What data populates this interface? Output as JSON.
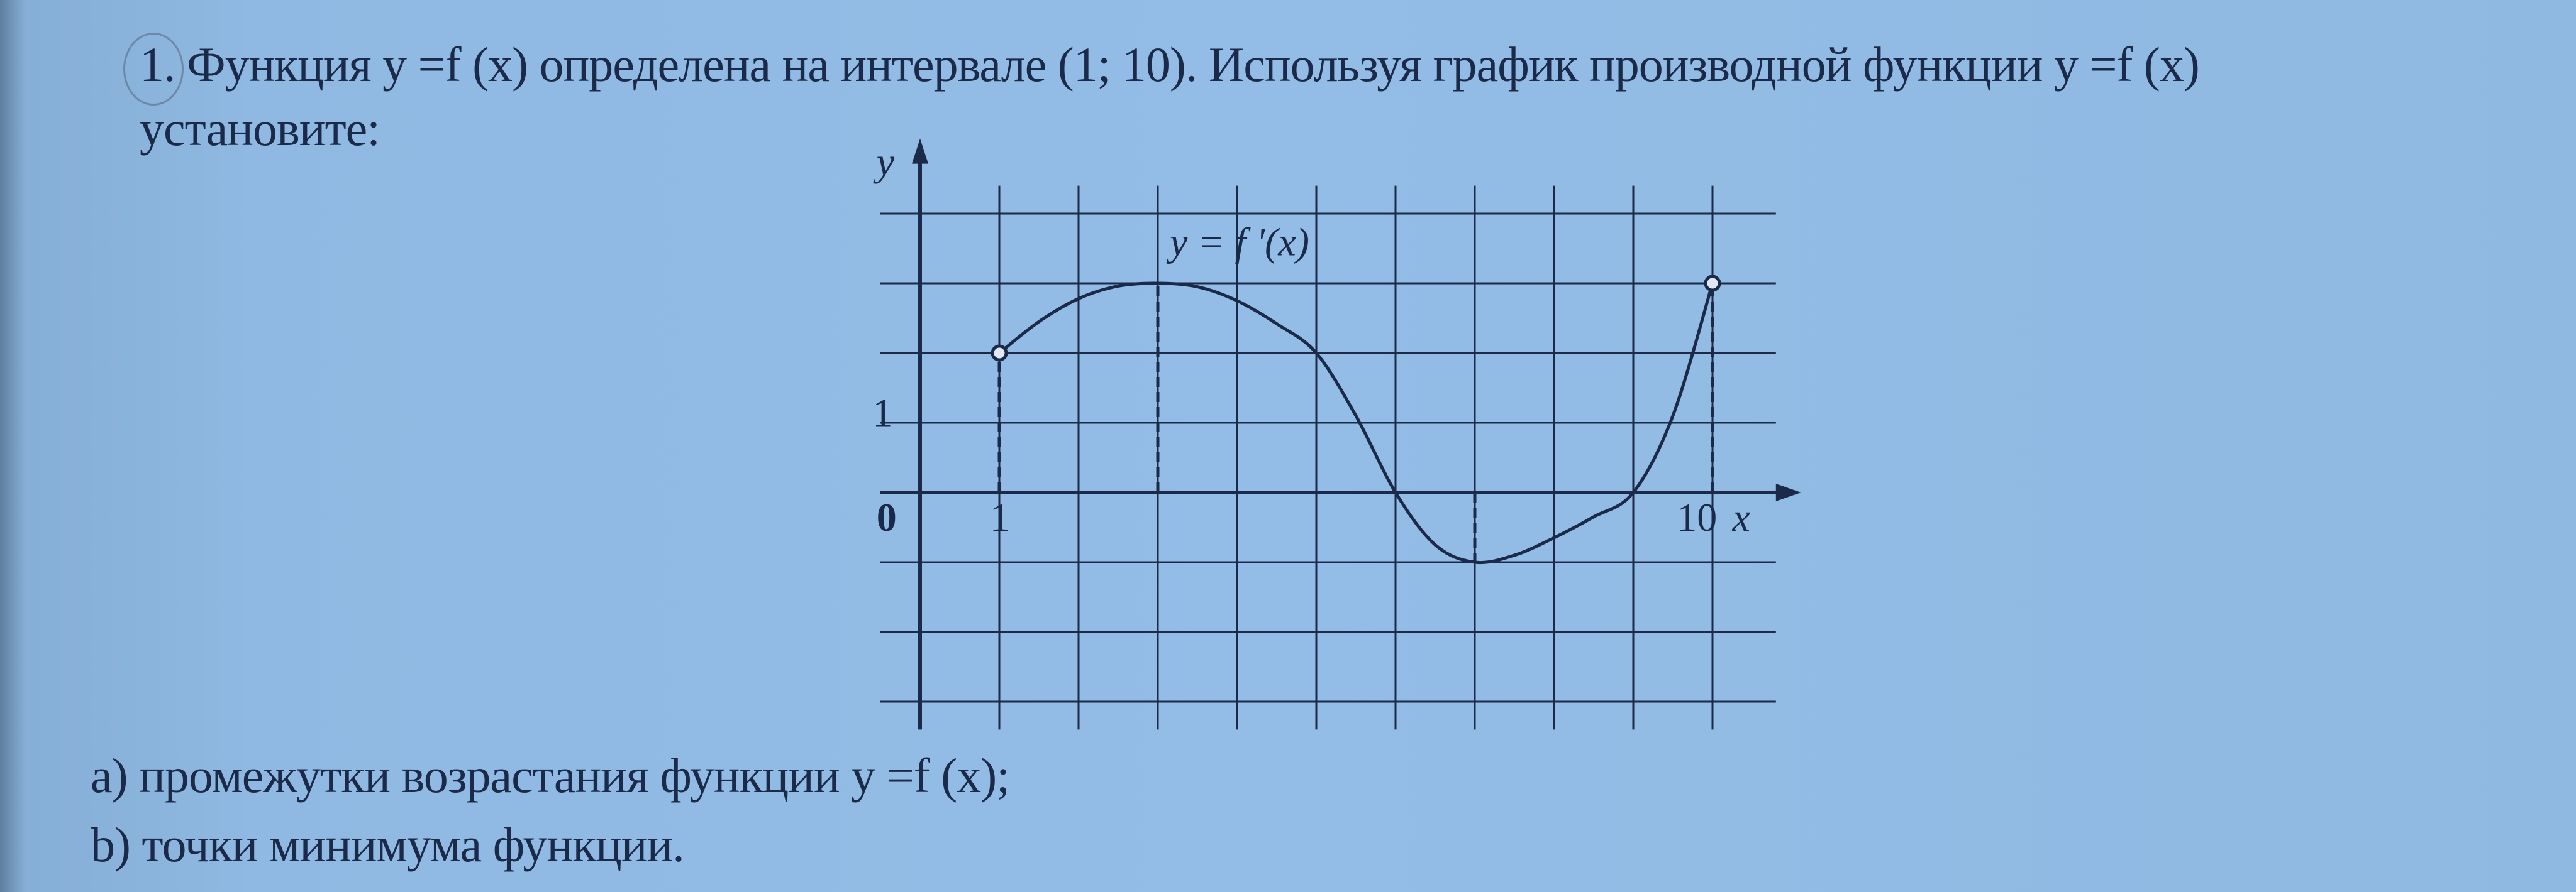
{
  "problem": {
    "line1": "1. Функция y =f (x) определена на интервале (1; 10). Используя график производной функции y =f (x)",
    "line2": "установите:",
    "item_a": "a) промежутки возрастания функции y =f (x);",
    "item_b": "b) точки минимума функции."
  },
  "colors": {
    "ink": "#1b2a48",
    "paper": "#8fb9e2"
  },
  "chart_data": {
    "type": "line",
    "title": "",
    "curve_label": "y = f '(x)",
    "xlabel": "x",
    "ylabel": "y",
    "x_tick_labels": [
      "0",
      "1",
      "10"
    ],
    "y_tick_labels": [
      "1"
    ],
    "xlim": [
      -0.5,
      10.8
    ],
    "ylim": [
      -3.4,
      4.4
    ],
    "grid": true,
    "grid_step": 1,
    "series": [
      {
        "points": [
          [
            1,
            2
          ],
          [
            1.5,
            2.45
          ],
          [
            2,
            2.78
          ],
          [
            2.5,
            2.96
          ],
          [
            3,
            3
          ],
          [
            3.5,
            2.95
          ],
          [
            4,
            2.75
          ],
          [
            4.5,
            2.42
          ],
          [
            5,
            2
          ],
          [
            5.5,
            1.1
          ],
          [
            6,
            0
          ],
          [
            6.5,
            -0.75
          ],
          [
            7,
            -1
          ],
          [
            7.5,
            -0.9
          ],
          [
            8,
            -0.65
          ],
          [
            8.5,
            -0.35
          ],
          [
            9,
            0
          ],
          [
            9.5,
            1.1
          ],
          [
            10,
            3
          ]
        ],
        "open_endpoints": [
          [
            1,
            2
          ],
          [
            10,
            3
          ]
        ]
      }
    ],
    "dashed_verticals": [
      1,
      3,
      7,
      10
    ]
  }
}
